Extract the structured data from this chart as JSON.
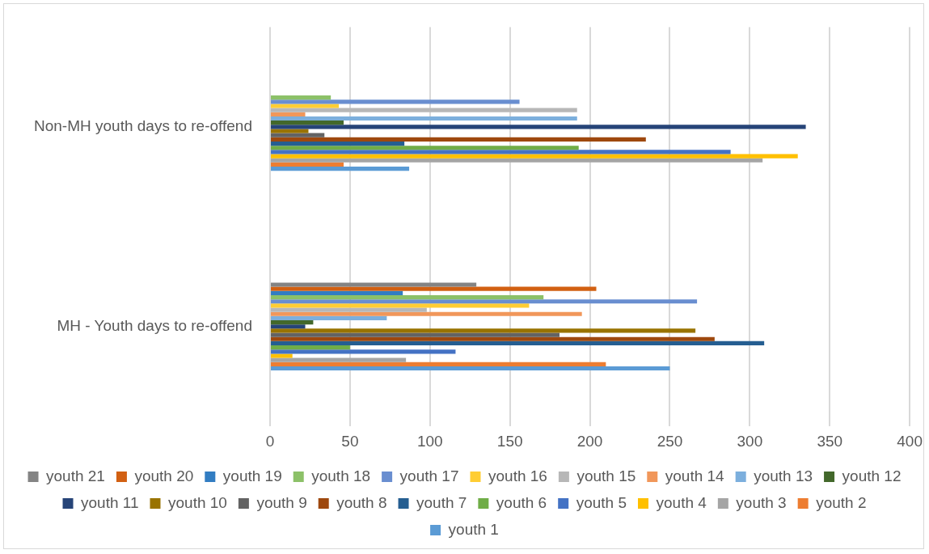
{
  "chart_data": {
    "type": "bar",
    "orientation": "horizontal",
    "categories": [
      "Non-MH youth days to re-offend",
      "MH - Youth days to re-offend"
    ],
    "series": [
      {
        "name": "youth 1",
        "color": "#5b9bd5",
        "values": [
          87,
          250
        ]
      },
      {
        "name": "youth 2",
        "color": "#ed7d31",
        "values": [
          46,
          210
        ]
      },
      {
        "name": "youth 3",
        "color": "#a5a5a5",
        "values": [
          308,
          85
        ]
      },
      {
        "name": "youth 4",
        "color": "#ffc000",
        "values": [
          330,
          14
        ]
      },
      {
        "name": "youth 5",
        "color": "#4472c4",
        "values": [
          288,
          116
        ]
      },
      {
        "name": "youth 6",
        "color": "#70ad47",
        "values": [
          193,
          50
        ]
      },
      {
        "name": "youth 7",
        "color": "#255e91",
        "values": [
          84,
          309
        ]
      },
      {
        "name": "youth 8",
        "color": "#9e480e",
        "values": [
          235,
          278
        ]
      },
      {
        "name": "youth 9",
        "color": "#636363",
        "values": [
          34,
          181
        ]
      },
      {
        "name": "youth 10",
        "color": "#997300",
        "values": [
          24,
          266
        ]
      },
      {
        "name": "youth 11",
        "color": "#264478",
        "values": [
          335,
          22
        ]
      },
      {
        "name": "youth 12",
        "color": "#43682b",
        "values": [
          46,
          27
        ]
      },
      {
        "name": "youth 13",
        "color": "#7cafdd",
        "values": [
          192,
          73
        ]
      },
      {
        "name": "youth 14",
        "color": "#f1975a",
        "values": [
          22,
          195
        ]
      },
      {
        "name": "youth 15",
        "color": "#b7b7b7",
        "values": [
          192,
          98
        ]
      },
      {
        "name": "youth 16",
        "color": "#ffcd33",
        "values": [
          43,
          162
        ]
      },
      {
        "name": "youth 17",
        "color": "#698ed0",
        "values": [
          156,
          267
        ]
      },
      {
        "name": "youth 18",
        "color": "#8cc168",
        "values": [
          38,
          171
        ]
      },
      {
        "name": "youth 19",
        "color": "#327dc2",
        "values": [
          null,
          83
        ]
      },
      {
        "name": "youth 20",
        "color": "#d26012",
        "values": [
          null,
          204
        ]
      },
      {
        "name": "youth 21",
        "color": "#848484",
        "values": [
          null,
          129
        ]
      }
    ],
    "xlim": [
      0,
      400
    ],
    "xticks": [
      0,
      50,
      100,
      150,
      200,
      250,
      300,
      350,
      400
    ],
    "grid": "x",
    "legend": "bottom"
  }
}
